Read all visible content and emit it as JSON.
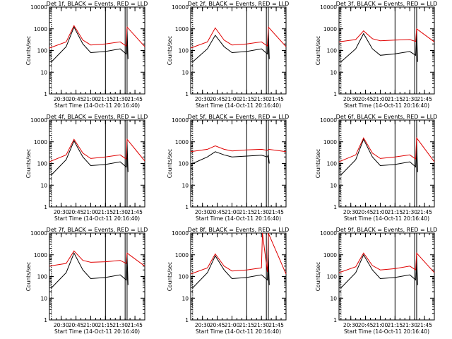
{
  "figure": {
    "title_suffix": "BLACK = Events, RED = LLD",
    "xlabel": "Start Time (14-Oct-11 20:16:40)",
    "ylabel": "Counts/sec"
  },
  "colors": {
    "events": "#000000",
    "lld": "#e00000",
    "axes": "#000000",
    "background": "#ffffff"
  },
  "chart_data": [
    {
      "type": "line",
      "title": "Det 1f, BLACK = Events, RED = LLD",
      "xlabel": "Start Time (14-Oct-11 20:16:40)",
      "ylabel": "Counts/sec",
      "xlim": [
        "20:18",
        "21:55"
      ],
      "ylim": [
        1,
        10000
      ],
      "yscale": "log",
      "xticks": [
        "20:30",
        "20:45",
        "21:00",
        "21:15",
        "21:30",
        "21:45"
      ],
      "yticks": [
        "1",
        "10",
        "100",
        "1000",
        "10000"
      ],
      "markers": [
        "20:20",
        "21:15",
        "21:35",
        "21:37"
      ],
      "series": [
        {
          "name": "Events",
          "color": "#000000",
          "x": [
            "20:20",
            "20:35",
            "20:43",
            "20:52",
            "21:00",
            "21:15",
            "21:30",
            "21:36",
            "21:37",
            "21:38"
          ],
          "values": [
            30,
            150,
            1200,
            200,
            80,
            90,
            120,
            70,
            1000,
            40
          ]
        },
        {
          "name": "LLD",
          "color": "#e00000",
          "x": [
            "20:18",
            "20:35",
            "20:43",
            "20:52",
            "21:00",
            "21:15",
            "21:30",
            "21:36",
            "21:37",
            "21:55"
          ],
          "values": [
            130,
            250,
            1400,
            300,
            180,
            200,
            250,
            160,
            1200,
            150
          ]
        }
      ]
    },
    {
      "type": "line",
      "title": "Det 2f, BLACK = Events, RED = LLD",
      "xlabel": "Start Time (14-Oct-11 20:16:40)",
      "ylabel": "Counts/sec",
      "xlim": [
        "20:18",
        "21:55"
      ],
      "ylim": [
        1,
        10000
      ],
      "yscale": "log",
      "xticks": [
        "20:30",
        "20:45",
        "21:00",
        "21:15",
        "21:30",
        "21:45"
      ],
      "yticks": [
        "1",
        "10",
        "100",
        "1000",
        "10000"
      ],
      "markers": [
        "20:20",
        "21:15",
        "21:35",
        "21:37"
      ],
      "series": [
        {
          "name": "Events",
          "color": "#000000",
          "x": [
            "20:20",
            "20:35",
            "20:43",
            "20:52",
            "21:00",
            "21:15",
            "21:30",
            "21:36",
            "21:37",
            "21:38"
          ],
          "values": [
            30,
            120,
            500,
            150,
            80,
            90,
            120,
            70,
            900,
            40
          ]
        },
        {
          "name": "LLD",
          "color": "#e00000",
          "x": [
            "20:18",
            "20:35",
            "20:43",
            "20:52",
            "21:00",
            "21:15",
            "21:30",
            "21:36",
            "21:37",
            "21:55"
          ],
          "values": [
            130,
            250,
            1100,
            300,
            180,
            200,
            250,
            160,
            1200,
            150
          ]
        }
      ]
    },
    {
      "type": "line",
      "title": "Det 3f, BLACK = Events, RED = LLD",
      "xlabel": "Start Time (14-Oct-11 20:16:40)",
      "ylabel": "Counts/sec",
      "xlim": [
        "20:18",
        "21:55"
      ],
      "ylim": [
        1,
        10000
      ],
      "yscale": "log",
      "xticks": [
        "20:30",
        "20:45",
        "21:00",
        "21:15",
        "21:30",
        "21:45"
      ],
      "yticks": [
        "1",
        "10",
        "100",
        "1000",
        "10000"
      ],
      "markers": [
        "20:20",
        "21:15",
        "21:35",
        "21:37"
      ],
      "series": [
        {
          "name": "Events",
          "color": "#000000",
          "x": [
            "20:20",
            "20:35",
            "20:43",
            "20:52",
            "21:00",
            "21:15",
            "21:30",
            "21:36",
            "21:37",
            "21:38"
          ],
          "values": [
            30,
            120,
            600,
            120,
            60,
            70,
            90,
            60,
            800,
            30
          ]
        },
        {
          "name": "LLD",
          "color": "#e00000",
          "x": [
            "20:18",
            "20:35",
            "20:43",
            "20:52",
            "21:00",
            "21:15",
            "21:30",
            "21:36",
            "21:37",
            "21:55"
          ],
          "values": [
            250,
            320,
            800,
            350,
            280,
            300,
            320,
            260,
            1000,
            250
          ]
        }
      ]
    },
    {
      "type": "line",
      "title": "Det 4f, BLACK = Events, RED = LLD",
      "xlabel": "Start Time (14-Oct-11 20:16:40)",
      "ylabel": "Counts/sec",
      "xlim": [
        "20:18",
        "21:55"
      ],
      "ylim": [
        1,
        10000
      ],
      "yscale": "log",
      "xticks": [
        "20:30",
        "20:45",
        "21:00",
        "21:15",
        "21:30",
        "21:45"
      ],
      "yticks": [
        "1",
        "10",
        "100",
        "1000",
        "10000"
      ],
      "markers": [
        "20:20",
        "21:15",
        "21:35",
        "21:37"
      ],
      "series": [
        {
          "name": "Events",
          "color": "#000000",
          "x": [
            "20:20",
            "20:35",
            "20:43",
            "20:52",
            "21:00",
            "21:15",
            "21:30",
            "21:36",
            "21:37",
            "21:38"
          ],
          "values": [
            30,
            150,
            1100,
            200,
            80,
            90,
            120,
            70,
            1000,
            40
          ]
        },
        {
          "name": "LLD",
          "color": "#e00000",
          "x": [
            "20:18",
            "20:35",
            "20:43",
            "20:52",
            "21:00",
            "21:15",
            "21:30",
            "21:36",
            "21:37",
            "21:55"
          ],
          "values": [
            120,
            250,
            1300,
            300,
            170,
            200,
            250,
            160,
            1300,
            130
          ]
        }
      ]
    },
    {
      "type": "line",
      "title": "Det 5f, BLACK = Events, RED = LLD",
      "xlabel": "Start Time (14-Oct-11 20:16:40)",
      "ylabel": "Counts/sec",
      "xlim": [
        "20:18",
        "21:55"
      ],
      "ylim": [
        1,
        10000
      ],
      "yscale": "log",
      "xticks": [
        "20:30",
        "20:45",
        "21:00",
        "21:15",
        "21:30",
        "21:45"
      ],
      "yticks": [
        "1",
        "10",
        "100",
        "1000",
        "10000"
      ],
      "markers": [
        "20:20",
        "21:15",
        "21:35",
        "21:37"
      ],
      "series": [
        {
          "name": "Events",
          "color": "#000000",
          "x": [
            "20:20",
            "20:35",
            "20:43",
            "20:52",
            "21:00",
            "21:15",
            "21:30",
            "21:36",
            "21:37",
            "21:38"
          ],
          "values": [
            100,
            200,
            350,
            250,
            200,
            220,
            240,
            200,
            260,
            100
          ]
        },
        {
          "name": "LLD",
          "color": "#e00000",
          "x": [
            "20:18",
            "20:35",
            "20:43",
            "20:52",
            "21:00",
            "21:15",
            "21:30",
            "21:36",
            "21:37",
            "21:55"
          ],
          "values": [
            350,
            450,
            650,
            450,
            380,
            420,
            450,
            400,
            450,
            350
          ]
        }
      ]
    },
    {
      "type": "line",
      "title": "Det 6f, BLACK = Events, RED = LLD",
      "xlabel": "Start Time (14-Oct-11 20:16:40)",
      "ylabel": "Counts/sec",
      "xlim": [
        "20:18",
        "21:55"
      ],
      "ylim": [
        1,
        10000
      ],
      "yscale": "log",
      "xticks": [
        "20:30",
        "20:45",
        "21:00",
        "21:15",
        "21:30",
        "21:45"
      ],
      "yticks": [
        "1",
        "10",
        "100",
        "1000",
        "10000"
      ],
      "markers": [
        "20:20",
        "21:15",
        "21:35",
        "21:37"
      ],
      "series": [
        {
          "name": "Events",
          "color": "#000000",
          "x": [
            "20:20",
            "20:35",
            "20:43",
            "20:52",
            "21:00",
            "21:15",
            "21:30",
            "21:36",
            "21:37",
            "21:38"
          ],
          "values": [
            30,
            150,
            1300,
            200,
            80,
            90,
            120,
            70,
            1000,
            40
          ]
        },
        {
          "name": "LLD",
          "color": "#e00000",
          "x": [
            "20:18",
            "20:35",
            "20:43",
            "20:52",
            "21:00",
            "21:15",
            "21:30",
            "21:36",
            "21:37",
            "21:55"
          ],
          "values": [
            120,
            250,
            1500,
            300,
            170,
            200,
            250,
            160,
            1500,
            120
          ]
        }
      ]
    },
    {
      "type": "line",
      "title": "Det 7f, BLACK = Events, RED = LLD",
      "xlabel": "Start Time (14-Oct-11 20:16:40)",
      "ylabel": "Counts/sec",
      "xlim": [
        "20:18",
        "21:55"
      ],
      "ylim": [
        1,
        10000
      ],
      "yscale": "log",
      "xticks": [
        "20:30",
        "20:45",
        "21:00",
        "21:15",
        "21:30",
        "21:45"
      ],
      "yticks": [
        "1",
        "10",
        "100",
        "1000",
        "10000"
      ],
      "markers": [
        "20:20",
        "21:15",
        "21:35",
        "21:37"
      ],
      "series": [
        {
          "name": "Events",
          "color": "#000000",
          "x": [
            "20:20",
            "20:35",
            "20:43",
            "20:52",
            "21:00",
            "21:15",
            "21:30",
            "21:36",
            "21:37",
            "21:38"
          ],
          "values": [
            30,
            150,
            1200,
            200,
            80,
            90,
            120,
            70,
            1000,
            40
          ]
        },
        {
          "name": "LLD",
          "color": "#e00000",
          "x": [
            "20:18",
            "20:35",
            "20:43",
            "20:52",
            "21:00",
            "21:15",
            "21:30",
            "21:36",
            "21:37",
            "21:55"
          ],
          "values": [
            300,
            400,
            1500,
            550,
            450,
            480,
            550,
            400,
            1200,
            300
          ]
        }
      ]
    },
    {
      "type": "line",
      "title": "Det 8f, BLACK = Events, RED = LLD",
      "xlabel": "Start Time (14-Oct-11 20:16:40)",
      "ylabel": "Counts/sec",
      "xlim": [
        "20:18",
        "21:55"
      ],
      "ylim": [
        1,
        10000
      ],
      "yscale": "log",
      "xticks": [
        "20:30",
        "20:45",
        "21:00",
        "21:15",
        "21:30",
        "21:45"
      ],
      "yticks": [
        "1",
        "10",
        "100",
        "1000",
        "10000"
      ],
      "markers": [
        "20:20",
        "21:15",
        "21:35",
        "21:37"
      ],
      "series": [
        {
          "name": "Events",
          "color": "#000000",
          "x": [
            "20:20",
            "20:35",
            "20:43",
            "20:52",
            "21:00",
            "21:15",
            "21:30",
            "21:36",
            "21:37",
            "21:38"
          ],
          "values": [
            30,
            150,
            900,
            200,
            80,
            90,
            120,
            70,
            1000,
            40
          ]
        },
        {
          "name": "LLD",
          "color": "#e00000",
          "x": [
            "20:18",
            "20:35",
            "20:43",
            "20:52",
            "21:00",
            "21:15",
            "21:30",
            "21:31",
            "21:36",
            "21:37",
            "21:55"
          ],
          "values": [
            130,
            250,
            1100,
            300,
            180,
            200,
            250,
            10000,
            160,
            10000,
            130
          ]
        }
      ]
    },
    {
      "type": "line",
      "title": "Det 9f, BLACK = Events, RED = LLD",
      "xlabel": "Start Time (14-Oct-11 20:16:40)",
      "ylabel": "Counts/sec",
      "xlim": [
        "20:18",
        "21:55"
      ],
      "ylim": [
        1,
        10000
      ],
      "yscale": "log",
      "xticks": [
        "20:30",
        "20:45",
        "21:00",
        "21:15",
        "21:30",
        "21:45"
      ],
      "yticks": [
        "1",
        "10",
        "100",
        "1000",
        "10000"
      ],
      "markers": [
        "20:20",
        "21:15",
        "21:35",
        "21:37"
      ],
      "series": [
        {
          "name": "Events",
          "color": "#000000",
          "x": [
            "20:20",
            "20:35",
            "20:43",
            "20:52",
            "21:00",
            "21:15",
            "21:30",
            "21:36",
            "21:37",
            "21:38"
          ],
          "values": [
            30,
            150,
            1000,
            200,
            80,
            90,
            120,
            70,
            900,
            40
          ]
        },
        {
          "name": "LLD",
          "color": "#e00000",
          "x": [
            "20:18",
            "20:35",
            "20:43",
            "20:52",
            "21:00",
            "21:15",
            "21:30",
            "21:36",
            "21:37",
            "21:55"
          ],
          "values": [
            150,
            280,
            1200,
            320,
            200,
            230,
            300,
            200,
            1200,
            150
          ]
        }
      ]
    }
  ]
}
